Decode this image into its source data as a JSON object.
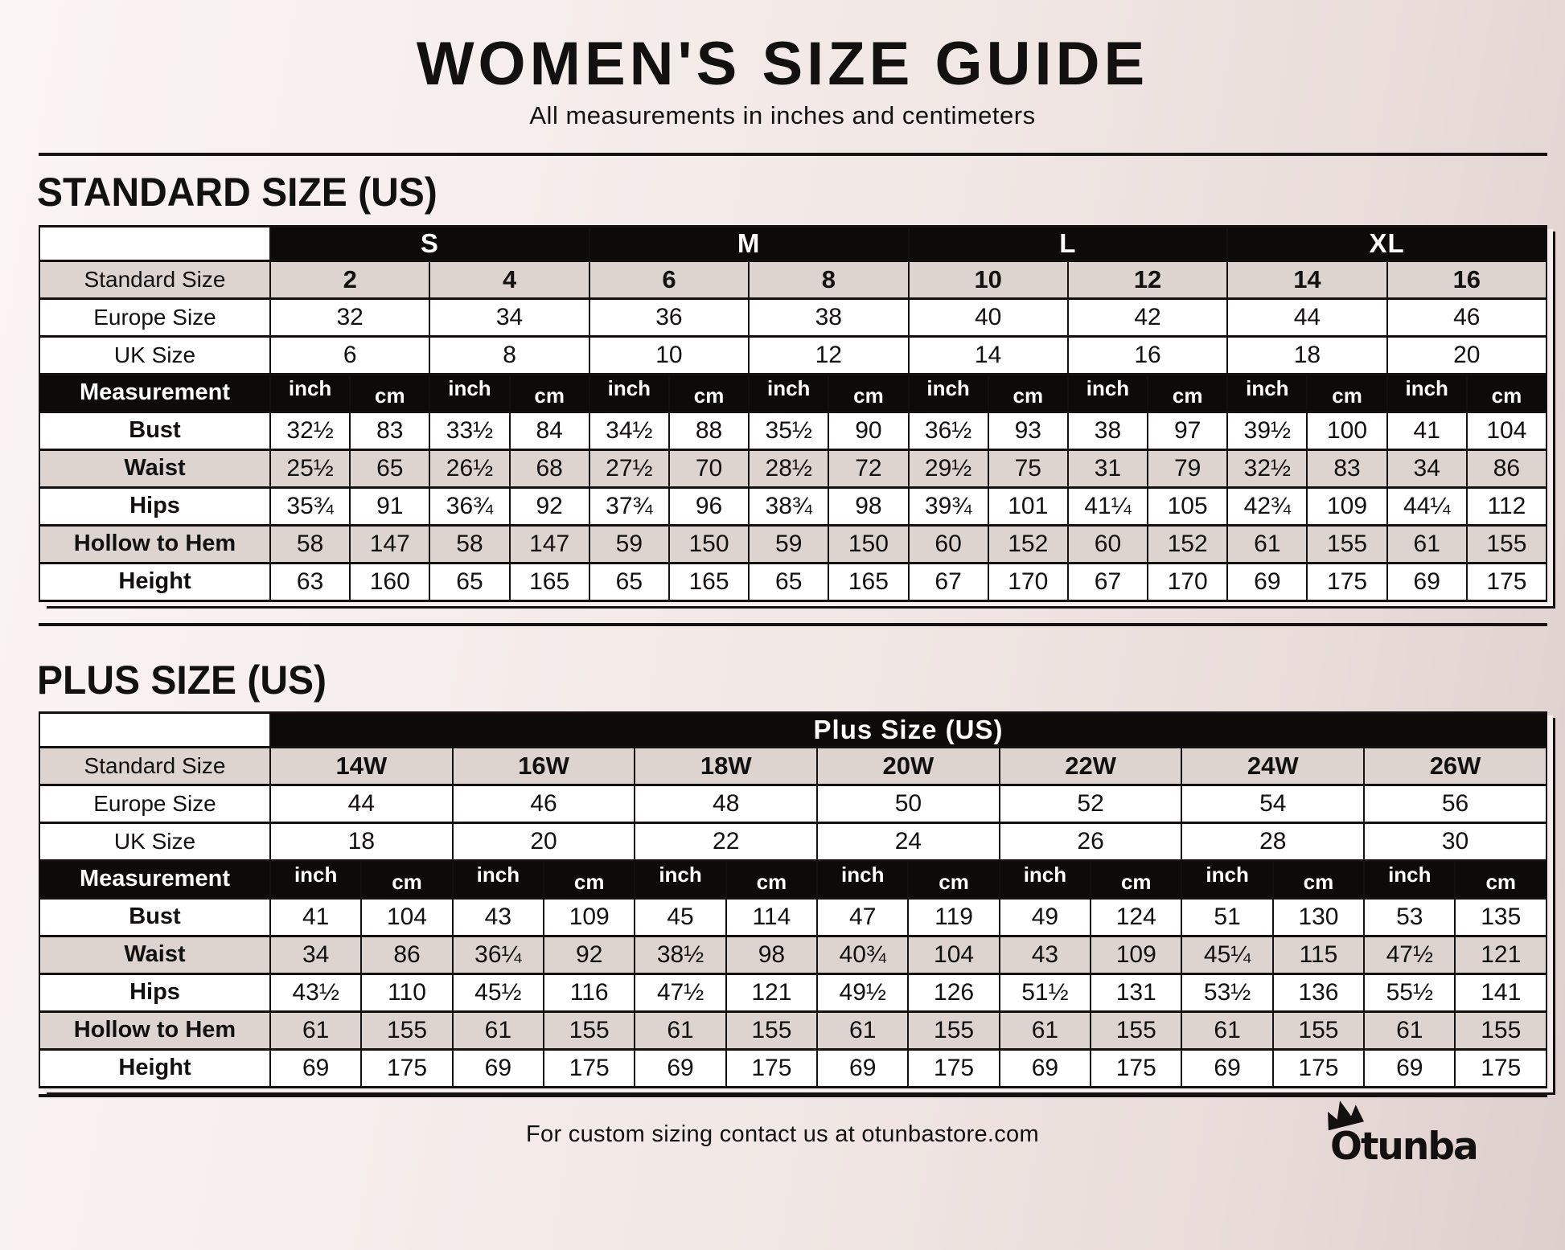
{
  "header": {
    "title": "WOMEN'S SIZE GUIDE",
    "subtitle": "All measurements in inches and centimeters"
  },
  "labels": {
    "standard_size": "Standard Size",
    "europe_size": "Europe Size",
    "uk_size": "UK Size",
    "measurement": "Measurement",
    "inch": "inch",
    "cm": "cm"
  },
  "colors": {
    "black": "#0d0a0a",
    "shade_row": "#ddd4d0",
    "page_background": "#f2e9e7"
  },
  "standard": {
    "heading": "STANDARD SIZE (US)",
    "groups": [
      {
        "label": "S",
        "span": 4
      },
      {
        "label": "M",
        "span": 4
      },
      {
        "label": "L",
        "span": 4
      },
      {
        "label": "XL",
        "span": 4
      }
    ],
    "sizes": [
      "2",
      "4",
      "6",
      "8",
      "10",
      "12",
      "14",
      "16"
    ],
    "europe": [
      "32",
      "34",
      "36",
      "38",
      "40",
      "42",
      "44",
      "46"
    ],
    "uk": [
      "6",
      "8",
      "10",
      "12",
      "14",
      "16",
      "18",
      "20"
    ],
    "measurements": [
      {
        "label": "Bust",
        "values": [
          [
            "32½",
            "83"
          ],
          [
            "33½",
            "84"
          ],
          [
            "34½",
            "88"
          ],
          [
            "35½",
            "90"
          ],
          [
            "36½",
            "93"
          ],
          [
            "38",
            "97"
          ],
          [
            "39½",
            "100"
          ],
          [
            "41",
            "104"
          ]
        ]
      },
      {
        "label": "Waist",
        "values": [
          [
            "25½",
            "65"
          ],
          [
            "26½",
            "68"
          ],
          [
            "27½",
            "70"
          ],
          [
            "28½",
            "72"
          ],
          [
            "29½",
            "75"
          ],
          [
            "31",
            "79"
          ],
          [
            "32½",
            "83"
          ],
          [
            "34",
            "86"
          ]
        ]
      },
      {
        "label": "Hips",
        "values": [
          [
            "35¾",
            "91"
          ],
          [
            "36¾",
            "92"
          ],
          [
            "37¾",
            "96"
          ],
          [
            "38¾",
            "98"
          ],
          [
            "39¾",
            "101"
          ],
          [
            "41¼",
            "105"
          ],
          [
            "42¾",
            "109"
          ],
          [
            "44¼",
            "112"
          ]
        ]
      },
      {
        "label": "Hollow to Hem",
        "values": [
          [
            "58",
            "147"
          ],
          [
            "58",
            "147"
          ],
          [
            "59",
            "150"
          ],
          [
            "59",
            "150"
          ],
          [
            "60",
            "152"
          ],
          [
            "60",
            "152"
          ],
          [
            "61",
            "155"
          ],
          [
            "61",
            "155"
          ]
        ]
      },
      {
        "label": "Height",
        "values": [
          [
            "63",
            "160"
          ],
          [
            "65",
            "165"
          ],
          [
            "65",
            "165"
          ],
          [
            "65",
            "165"
          ],
          [
            "67",
            "170"
          ],
          [
            "67",
            "170"
          ],
          [
            "69",
            "175"
          ],
          [
            "69",
            "175"
          ]
        ]
      }
    ]
  },
  "plus": {
    "heading": "PLUS SIZE (US)",
    "groups": [
      {
        "label": "Plus Size (US)",
        "span": 14
      }
    ],
    "sizes": [
      "14W",
      "16W",
      "18W",
      "20W",
      "22W",
      "24W",
      "26W"
    ],
    "europe": [
      "44",
      "46",
      "48",
      "50",
      "52",
      "54",
      "56"
    ],
    "uk": [
      "18",
      "20",
      "22",
      "24",
      "26",
      "28",
      "30"
    ],
    "measurements": [
      {
        "label": "Bust",
        "values": [
          [
            "41",
            "104"
          ],
          [
            "43",
            "109"
          ],
          [
            "45",
            "114"
          ],
          [
            "47",
            "119"
          ],
          [
            "49",
            "124"
          ],
          [
            "51",
            "130"
          ],
          [
            "53",
            "135"
          ]
        ]
      },
      {
        "label": "Waist",
        "values": [
          [
            "34",
            "86"
          ],
          [
            "36¼",
            "92"
          ],
          [
            "38½",
            "98"
          ],
          [
            "40¾",
            "104"
          ],
          [
            "43",
            "109"
          ],
          [
            "45¼",
            "115"
          ],
          [
            "47½",
            "121"
          ]
        ]
      },
      {
        "label": "Hips",
        "values": [
          [
            "43½",
            "110"
          ],
          [
            "45½",
            "116"
          ],
          [
            "47½",
            "121"
          ],
          [
            "49½",
            "126"
          ],
          [
            "51½",
            "131"
          ],
          [
            "53½",
            "136"
          ],
          [
            "55½",
            "141"
          ]
        ]
      },
      {
        "label": "Hollow to Hem",
        "values": [
          [
            "61",
            "155"
          ],
          [
            "61",
            "155"
          ],
          [
            "61",
            "155"
          ],
          [
            "61",
            "155"
          ],
          [
            "61",
            "155"
          ],
          [
            "61",
            "155"
          ],
          [
            "61",
            "155"
          ]
        ]
      },
      {
        "label": "Height",
        "values": [
          [
            "69",
            "175"
          ],
          [
            "69",
            "175"
          ],
          [
            "69",
            "175"
          ],
          [
            "69",
            "175"
          ],
          [
            "69",
            "175"
          ],
          [
            "69",
            "175"
          ],
          [
            "69",
            "175"
          ]
        ]
      }
    ]
  },
  "footer": {
    "note": "For custom sizing contact us at otunbastore.com",
    "brand": "Otunba",
    "crown_icon": "crown"
  }
}
